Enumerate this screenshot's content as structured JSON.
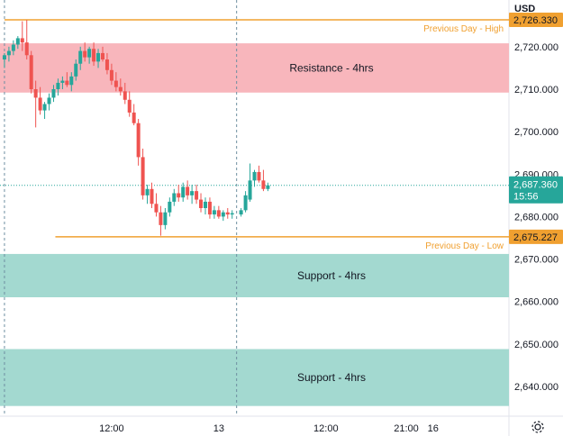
{
  "header": {
    "currency": "USD"
  },
  "footer": {
    "settings_icon": "gear-icon"
  },
  "colors": {
    "up": "#26a69a",
    "down": "#ef5350",
    "level_line": "#f0a030",
    "resistance_fill": "#f8b6bc",
    "support_fill": "#a3d9d0",
    "price_tag": "#26a69a",
    "session_line": "#6d8ea0"
  },
  "chart_data": {
    "type": "candlestick",
    "y_axis": {
      "range": [
        2633,
        2731
      ],
      "ticks": [
        "2,720.000",
        "2,710.000",
        "2,700.000",
        "2,690.000",
        "2,680.000",
        "2,670.000",
        "2,660.000",
        "2,650.000",
        "2,640.000"
      ],
      "tick_values": [
        2720,
        2710,
        2700,
        2690,
        2680,
        2670,
        2660,
        2650,
        2640
      ]
    },
    "x_axis": {
      "labels": [
        "12:00",
        "13",
        "12:00",
        "21:00",
        "16"
      ],
      "label_hours": [
        12,
        24,
        36,
        45,
        48
      ],
      "range_hours": [
        -0.5,
        56.5
      ]
    },
    "levels": [
      {
        "label": "Previous Day - High",
        "price": 2726.33,
        "price_label": "2,726.330",
        "start_hour": 0
      },
      {
        "label": "Previous Day - Low",
        "price": 2675.227,
        "price_label": "2,675.227",
        "start_hour": 5.7
      }
    ],
    "zones": [
      {
        "label": "Resistance - 4hrs",
        "top": 2720.8,
        "bottom": 2709.2,
        "kind": "resistance"
      },
      {
        "label": "Support - 4hrs",
        "top": 2671.2,
        "bottom": 2661.0,
        "kind": "support"
      },
      {
        "label": "Support - 4hrs",
        "top": 2648.8,
        "bottom": 2635.4,
        "kind": "support"
      }
    ],
    "session_marks_hours": [
      0,
      26
    ],
    "last_price": {
      "value": 2687.36,
      "label": "2,687.360",
      "countdown": "15:56"
    },
    "candles": [
      {
        "t": 0.0,
        "o": 2717.0,
        "h": 2718.5,
        "l": 2715.0,
        "c": 2718.0
      },
      {
        "t": 0.5,
        "o": 2718.0,
        "h": 2720.0,
        "l": 2716.5,
        "c": 2719.0
      },
      {
        "t": 1.0,
        "o": 2719.0,
        "h": 2721.5,
        "l": 2718.0,
        "c": 2720.5
      },
      {
        "t": 1.5,
        "o": 2720.5,
        "h": 2722.5,
        "l": 2719.5,
        "c": 2722.0
      },
      {
        "t": 2.0,
        "o": 2722.0,
        "h": 2726.0,
        "l": 2719.0,
        "c": 2721.0
      },
      {
        "t": 2.5,
        "o": 2721.0,
        "h": 2726.3,
        "l": 2717.0,
        "c": 2718.0
      },
      {
        "t": 3.0,
        "o": 2718.0,
        "h": 2719.0,
        "l": 2709.0,
        "c": 2710.0
      },
      {
        "t": 3.5,
        "o": 2710.0,
        "h": 2712.0,
        "l": 2701.0,
        "c": 2708.0
      },
      {
        "t": 4.0,
        "o": 2708.0,
        "h": 2710.5,
        "l": 2704.0,
        "c": 2705.0
      },
      {
        "t": 4.5,
        "o": 2705.0,
        "h": 2707.0,
        "l": 2703.0,
        "c": 2706.5
      },
      {
        "t": 5.0,
        "o": 2706.5,
        "h": 2709.0,
        "l": 2705.0,
        "c": 2708.0
      },
      {
        "t": 5.5,
        "o": 2708.0,
        "h": 2711.0,
        "l": 2707.0,
        "c": 2710.0
      },
      {
        "t": 6.0,
        "o": 2710.0,
        "h": 2712.5,
        "l": 2708.5,
        "c": 2711.5
      },
      {
        "t": 6.5,
        "o": 2711.5,
        "h": 2713.0,
        "l": 2710.0,
        "c": 2712.0
      },
      {
        "t": 7.0,
        "o": 2712.0,
        "h": 2714.0,
        "l": 2710.5,
        "c": 2711.0
      },
      {
        "t": 7.5,
        "o": 2711.0,
        "h": 2714.0,
        "l": 2709.5,
        "c": 2713.0
      },
      {
        "t": 8.0,
        "o": 2713.0,
        "h": 2717.0,
        "l": 2712.0,
        "c": 2716.0
      },
      {
        "t": 8.5,
        "o": 2716.0,
        "h": 2720.0,
        "l": 2714.5,
        "c": 2719.0
      },
      {
        "t": 9.0,
        "o": 2719.0,
        "h": 2721.0,
        "l": 2716.5,
        "c": 2717.5
      },
      {
        "t": 9.5,
        "o": 2717.5,
        "h": 2720.0,
        "l": 2716.0,
        "c": 2719.5
      },
      {
        "t": 10.0,
        "o": 2719.5,
        "h": 2721.0,
        "l": 2715.5,
        "c": 2716.5
      },
      {
        "t": 10.5,
        "o": 2716.5,
        "h": 2719.5,
        "l": 2715.0,
        "c": 2718.5
      },
      {
        "t": 11.0,
        "o": 2718.5,
        "h": 2720.0,
        "l": 2716.5,
        "c": 2717.0
      },
      {
        "t": 11.5,
        "o": 2717.0,
        "h": 2718.5,
        "l": 2713.5,
        "c": 2714.5
      },
      {
        "t": 12.0,
        "o": 2714.5,
        "h": 2716.0,
        "l": 2711.0,
        "c": 2712.0
      },
      {
        "t": 12.5,
        "o": 2712.0,
        "h": 2714.0,
        "l": 2709.5,
        "c": 2710.5
      },
      {
        "t": 13.0,
        "o": 2710.5,
        "h": 2712.5,
        "l": 2708.5,
        "c": 2709.5
      },
      {
        "t": 13.5,
        "o": 2709.5,
        "h": 2711.5,
        "l": 2706.5,
        "c": 2707.5
      },
      {
        "t": 14.0,
        "o": 2707.5,
        "h": 2709.5,
        "l": 2703.5,
        "c": 2704.5
      },
      {
        "t": 14.5,
        "o": 2704.5,
        "h": 2706.5,
        "l": 2701.5,
        "c": 2702.0
      },
      {
        "t": 15.0,
        "o": 2702.0,
        "h": 2703.0,
        "l": 2692.0,
        "c": 2694.0
      },
      {
        "t": 15.5,
        "o": 2694.0,
        "h": 2696.0,
        "l": 2684.0,
        "c": 2685.0
      },
      {
        "t": 16.0,
        "o": 2685.0,
        "h": 2687.5,
        "l": 2683.0,
        "c": 2686.5
      },
      {
        "t": 16.5,
        "o": 2686.5,
        "h": 2688.0,
        "l": 2682.0,
        "c": 2683.0
      },
      {
        "t": 17.0,
        "o": 2683.0,
        "h": 2685.5,
        "l": 2680.0,
        "c": 2681.0
      },
      {
        "t": 17.5,
        "o": 2681.0,
        "h": 2682.5,
        "l": 2675.5,
        "c": 2678.0
      },
      {
        "t": 18.0,
        "o": 2678.0,
        "h": 2682.0,
        "l": 2677.0,
        "c": 2681.0
      },
      {
        "t": 18.5,
        "o": 2681.0,
        "h": 2684.5,
        "l": 2680.0,
        "c": 2683.5
      },
      {
        "t": 19.0,
        "o": 2683.5,
        "h": 2686.5,
        "l": 2682.5,
        "c": 2685.5
      },
      {
        "t": 19.5,
        "o": 2685.5,
        "h": 2687.5,
        "l": 2683.5,
        "c": 2684.5
      },
      {
        "t": 20.0,
        "o": 2684.5,
        "h": 2688.0,
        "l": 2683.5,
        "c": 2687.0
      },
      {
        "t": 20.5,
        "o": 2687.0,
        "h": 2688.5,
        "l": 2684.0,
        "c": 2685.0
      },
      {
        "t": 21.0,
        "o": 2685.0,
        "h": 2687.5,
        "l": 2683.0,
        "c": 2686.0
      },
      {
        "t": 21.5,
        "o": 2686.0,
        "h": 2687.5,
        "l": 2683.0,
        "c": 2684.0
      },
      {
        "t": 22.0,
        "o": 2684.0,
        "h": 2685.5,
        "l": 2681.0,
        "c": 2682.0
      },
      {
        "t": 22.5,
        "o": 2682.0,
        "h": 2684.5,
        "l": 2680.5,
        "c": 2683.5
      },
      {
        "t": 23.0,
        "o": 2683.5,
        "h": 2684.5,
        "l": 2679.5,
        "c": 2680.5
      },
      {
        "t": 23.5,
        "o": 2680.5,
        "h": 2682.5,
        "l": 2679.5,
        "c": 2681.5
      },
      {
        "t": 24.0,
        "o": 2681.5,
        "h": 2682.5,
        "l": 2679.5,
        "c": 2680.0
      },
      {
        "t": 24.5,
        "o": 2680.0,
        "h": 2681.5,
        "l": 2679.0,
        "c": 2681.0
      },
      {
        "t": 25.0,
        "o": 2681.0,
        "h": 2682.0,
        "l": 2679.5,
        "c": 2680.5
      },
      {
        "t": 25.5,
        "o": 2680.5,
        "h": 2681.5,
        "l": 2679.5,
        "c": 2680.8
      },
      {
        "t": 26.5,
        "o": 2680.5,
        "h": 2682.0,
        "l": 2680.0,
        "c": 2681.5
      },
      {
        "t": 27.0,
        "o": 2681.5,
        "h": 2686.0,
        "l": 2681.0,
        "c": 2685.0
      },
      {
        "t": 27.5,
        "o": 2684.0,
        "h": 2692.5,
        "l": 2683.5,
        "c": 2688.5
      },
      {
        "t": 28.0,
        "o": 2688.5,
        "h": 2691.0,
        "l": 2687.0,
        "c": 2690.5
      },
      {
        "t": 28.5,
        "o": 2690.5,
        "h": 2692.0,
        "l": 2688.0,
        "c": 2688.5
      },
      {
        "t": 29.0,
        "o": 2688.5,
        "h": 2691.0,
        "l": 2686.0,
        "c": 2686.5
      },
      {
        "t": 29.5,
        "o": 2686.5,
        "h": 2688.0,
        "l": 2686.0,
        "c": 2687.36
      }
    ]
  }
}
